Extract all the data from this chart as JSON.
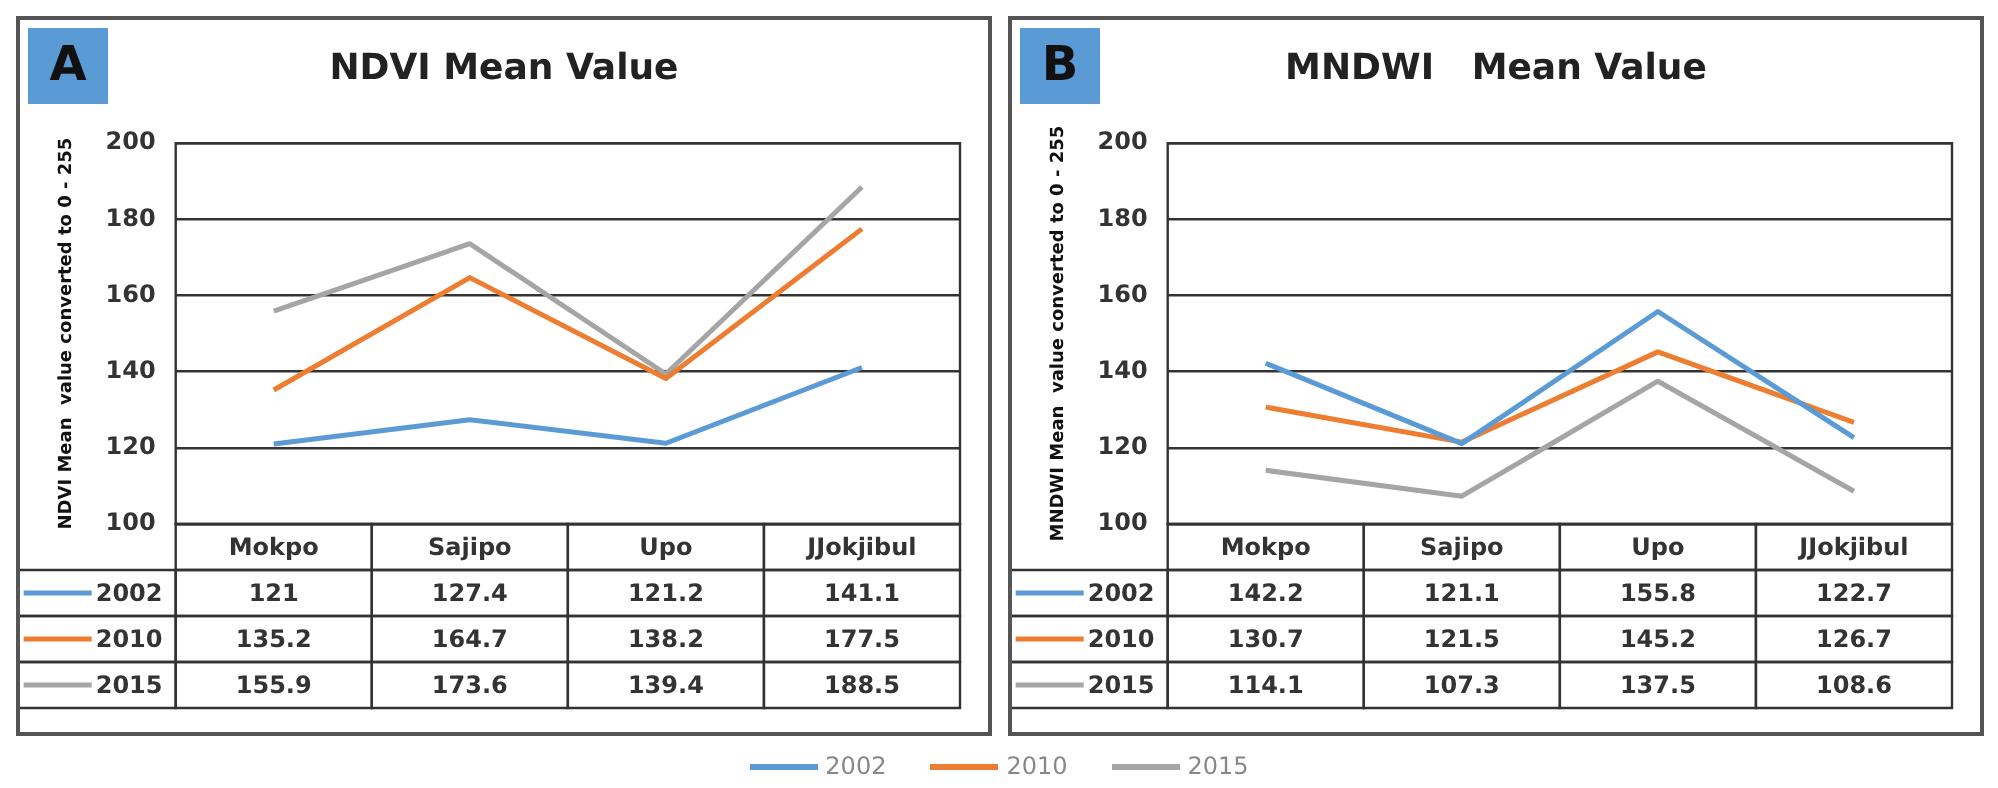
{
  "chart_data": [
    {
      "type": "line",
      "title": "NDVI Mean Value",
      "ylabel": "NDVI Mean  value converted to 0 - 255",
      "annotations": [
        "A"
      ],
      "categories": [
        "Mokpo",
        "Sajipo",
        "Upo",
        "JJokjibul"
      ],
      "series": [
        {
          "name": "2002",
          "color": "#5b9bd5",
          "values": [
            121,
            127.4,
            121.2,
            141.1
          ]
        },
        {
          "name": "2010",
          "color": "#ed7d31",
          "values": [
            135.2,
            164.7,
            138.2,
            177.5
          ]
        },
        {
          "name": "2015",
          "color": "#a5a5a5",
          "values": [
            155.9,
            173.6,
            139.4,
            188.5
          ]
        }
      ],
      "ylim": [
        100,
        200
      ],
      "yticks": [
        100,
        120,
        140,
        160,
        180,
        200
      ],
      "grid": "y",
      "legend": "bottom",
      "marker": "none",
      "data_labels": true
    },
    {
      "type": "line",
      "title": "MNDWI   Mean Value",
      "ylabel": "MNDWI Mean  value converted to 0 - 255",
      "annotations": [
        "B"
      ],
      "categories": [
        "Mokpo",
        "Sajipo",
        "Upo",
        "JJokjibul"
      ],
      "series": [
        {
          "name": "2002",
          "color": "#5b9bd5",
          "values": [
            142.2,
            121.1,
            155.8,
            122.7
          ]
        },
        {
          "name": "2010",
          "color": "#ed7d31",
          "values": [
            130.7,
            121.5,
            145.2,
            126.7
          ]
        },
        {
          "name": "2015",
          "color": "#a5a5a5",
          "values": [
            114.1,
            107.3,
            137.5,
            108.6
          ]
        }
      ],
      "ylim": [
        100,
        200
      ],
      "yticks": [
        100,
        120,
        140,
        160,
        180,
        200
      ],
      "grid": "y",
      "legend": "bottom",
      "marker": "none",
      "data_labels": true
    }
  ]
}
